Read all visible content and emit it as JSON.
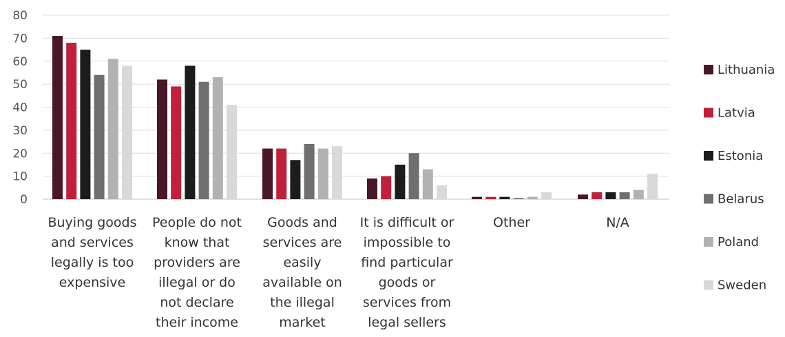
{
  "chart_data": {
    "type": "bar",
    "title": "",
    "xlabel": "",
    "ylabel": "",
    "ylim": [
      0,
      80
    ],
    "yticks": [
      "0",
      "10",
      "20",
      "30",
      "40",
      "50",
      "60",
      "70",
      "80"
    ],
    "grid": true,
    "legend_position": "right",
    "categories": [
      [
        "Buying goods",
        "and services",
        "legally is too",
        "expensive"
      ],
      [
        "People do not",
        "know that",
        "providers are",
        "illegal or do",
        "not declare",
        "their income"
      ],
      [
        "Goods and",
        "services are",
        "easily",
        "available on",
        "the illegal",
        "market"
      ],
      [
        "It is difficult or",
        "impossible to",
        "find particular",
        "goods or",
        "services from",
        "legal sellers"
      ],
      [
        "Other"
      ],
      [
        "N/A"
      ]
    ],
    "series": [
      {
        "name": "Lithuania",
        "color": "#4a1728",
        "values": [
          71,
          52,
          22,
          9,
          1,
          2
        ]
      },
      {
        "name": "Latvia",
        "color": "#c0203a",
        "values": [
          68,
          49,
          22,
          10,
          1,
          3
        ]
      },
      {
        "name": "Estonia",
        "color": "#1c1c1c",
        "values": [
          65,
          58,
          17,
          15,
          1,
          3
        ]
      },
      {
        "name": "Belarus",
        "color": "#6f6f6f",
        "values": [
          54,
          51,
          24,
          20,
          0.5,
          3
        ]
      },
      {
        "name": "Poland",
        "color": "#b2b2b2",
        "values": [
          61,
          53,
          22,
          13,
          1,
          4
        ]
      },
      {
        "name": "Sweden",
        "color": "#d9d9d9",
        "values": [
          58,
          41,
          23,
          6,
          3,
          11
        ]
      }
    ]
  }
}
